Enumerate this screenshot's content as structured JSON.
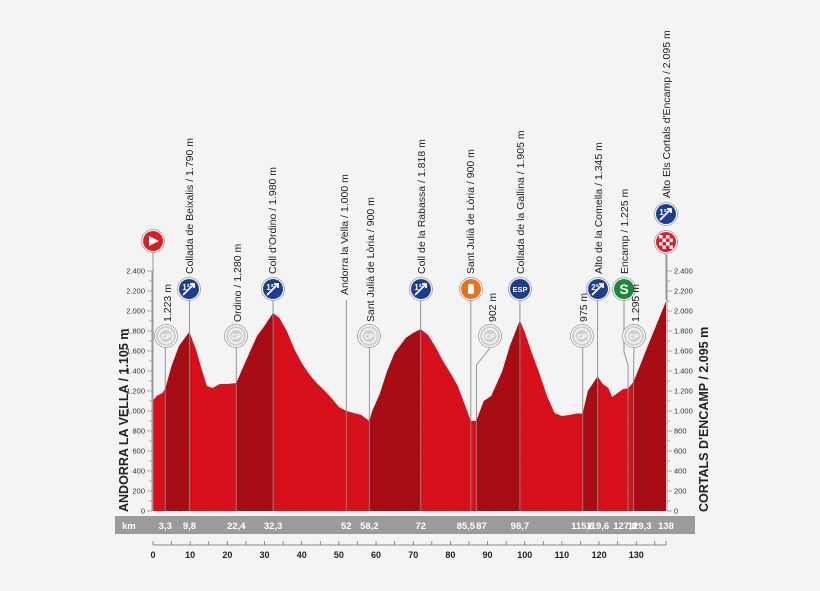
{
  "chart_data": {
    "type": "area",
    "title": "",
    "xlabel": "km",
    "ylabel": "",
    "xlim": [
      0,
      138
    ],
    "ylim": [
      0,
      2400
    ],
    "grid": false,
    "start_label": "ANDORRA LA VELLA / 1.105 m",
    "finish_label": "CORTALS D'ENCAMP / 2.095 m",
    "y_ticks": [
      "0",
      "200",
      "400",
      "600",
      "800",
      "1.000",
      "1.200",
      "1.400",
      "1.600",
      "1.800",
      "2.000",
      "2.200",
      "2.400"
    ],
    "x_ticks": [
      "0",
      "10",
      "20",
      "30",
      "40",
      "50",
      "60",
      "70",
      "80",
      "90",
      "100",
      "110",
      "120",
      "130"
    ],
    "km_bar_label": "km",
    "km_markers": [
      "3,3",
      "9,8",
      "22,4",
      "32,3",
      "52",
      "58,2",
      "72",
      "85,5",
      "87",
      "98,7",
      "115,6",
      "119,6",
      "127,8",
      "129,3",
      "138"
    ],
    "profile": {
      "x": [
        0,
        1,
        2.5,
        3.3,
        5,
        7,
        9.8,
        11.5,
        13,
        14.5,
        16,
        18,
        20,
        22.4,
        25,
        28,
        30,
        32.3,
        34,
        36,
        38,
        40,
        42,
        44,
        46,
        48,
        50,
        52,
        54,
        56,
        58.2,
        59,
        61,
        63,
        65,
        68,
        70,
        72,
        74,
        76,
        78,
        80,
        82,
        84,
        85.5,
        87,
        89,
        91,
        94,
        96,
        98.7,
        100,
        102,
        104,
        106,
        108,
        110,
        112,
        114,
        115.6,
        117,
        119.6,
        121,
        122.5,
        123.5,
        125,
        126.5,
        127.8,
        129.3,
        131,
        133,
        135,
        138
      ],
      "y": [
        1105,
        1150,
        1180,
        1223,
        1450,
        1650,
        1790,
        1620,
        1430,
        1250,
        1230,
        1270,
        1270,
        1280,
        1500,
        1750,
        1850,
        1980,
        1930,
        1800,
        1620,
        1480,
        1370,
        1280,
        1210,
        1130,
        1040,
        1000,
        980,
        960,
        900,
        1000,
        1170,
        1400,
        1580,
        1730,
        1780,
        1818,
        1760,
        1640,
        1500,
        1380,
        1250,
        1050,
        900,
        902,
        1100,
        1150,
        1400,
        1650,
        1905,
        1790,
        1570,
        1370,
        1150,
        980,
        950,
        960,
        975,
        975,
        1200,
        1345,
        1270,
        1230,
        1140,
        1180,
        1220,
        1225,
        1295,
        1450,
        1640,
        1820,
        2095
      ]
    },
    "points": [
      {
        "km": 0,
        "name": "Salida / Start",
        "icon": "start"
      },
      {
        "km": 3.3,
        "label": "1.223 m",
        "icon": "sprint-cp"
      },
      {
        "km": 9.8,
        "label": "Collada de Beixalis / 1.790 m",
        "icon": "climb-cat-1"
      },
      {
        "km": 22.4,
        "label": "Ordino / 1.280 m",
        "icon": "sprint-cp"
      },
      {
        "km": 32.3,
        "label": "Coll d'Ordino / 1.980 m",
        "icon": "climb-cat-1"
      },
      {
        "km": 52,
        "label": "Andorra la Vella / 1.000 m",
        "icon": "none"
      },
      {
        "km": 58.2,
        "label": "Sant Julià de Lòria / 900 m",
        "icon": "sprint-cp"
      },
      {
        "km": 72,
        "label": "Coll de la Rabassa / 1.818 m",
        "icon": "climb-cat-1"
      },
      {
        "km": 85.5,
        "label": "Sant Julià de Lòria / 900 m",
        "icon": "feed-zone"
      },
      {
        "km": 87,
        "label": "902 m",
        "icon": "sprint-cp"
      },
      {
        "km": 98.7,
        "label": "Collada de la Gallina / 1.905 m",
        "icon": "climb-esp"
      },
      {
        "km": 115.6,
        "label": "975 m",
        "icon": "sprint-cp"
      },
      {
        "km": 119.6,
        "label": "Alto de la Comella / 1.345 m",
        "icon": "climb-cat-2"
      },
      {
        "km": 127.8,
        "label": "Encamp / 1.225 m",
        "icon": "sprint"
      },
      {
        "km": 129.3,
        "label": "1.295 m",
        "icon": "sprint-cp"
      },
      {
        "km": 138,
        "label": "Alto Els Cortals d'Encamp / 2.095 m",
        "icon": "climb-cat-1"
      },
      {
        "km": 138,
        "name": "Meta / Finish",
        "icon": "finish"
      }
    ],
    "colors": {
      "fill_light": "#d7101b",
      "fill_dark": "#a80c15",
      "category_blue": "#1d3d8f",
      "esp_blue": "#1d3d8f",
      "sprint_green": "#1a8a3a",
      "feed_orange": "#e8731a",
      "start_red": "#d81e26",
      "km_bar": "#9b9b9b"
    }
  },
  "labels": {
    "start": "ANDORRA LA VELLA / 1.105 m",
    "finish": "CORTALS D'ENCAMP / 2.095 m",
    "km": "km",
    "cp": "CP",
    "esp": "ESP",
    "cat1": "1ª",
    "cat2": "2ª",
    "sprint": "S",
    "feed": "✋",
    "top_labels": [
      "1.223 m",
      "Collada de Beixalis / 1.790 m",
      "Ordino / 1.280 m",
      "Coll d'Ordino / 1.980 m",
      "Andorra la Vella / 1.000 m",
      "Sant Julià de Lòria / 900 m",
      "Coll de la Rabassa / 1.818 m",
      "Sant Julià de Lòria / 900 m",
      "902 m",
      "Collada de la Gallina / 1.905 m",
      "975 m",
      "Alto de la Comella / 1.345 m",
      "Encamp / 1.225 m",
      "1.295 m",
      "Alto Els Cortals d'Encamp / 2.095 m"
    ]
  }
}
